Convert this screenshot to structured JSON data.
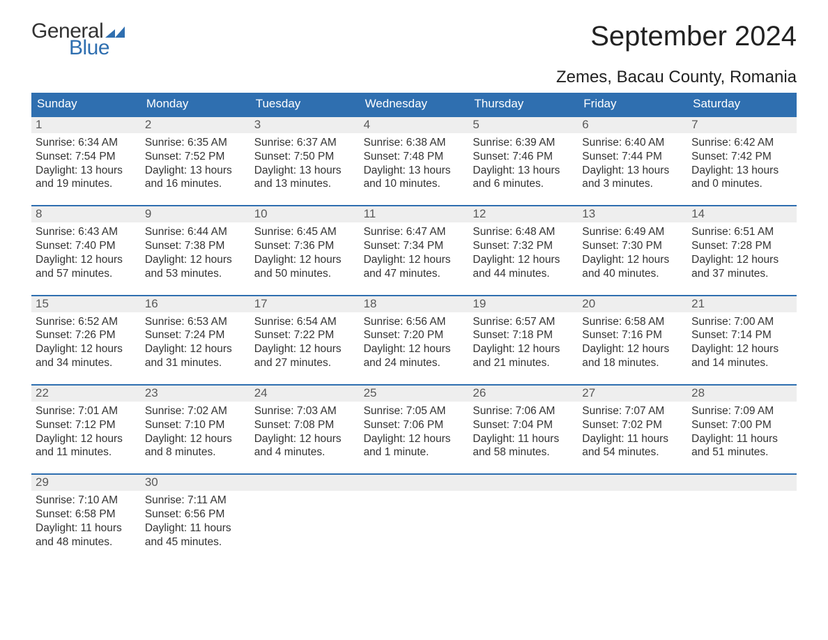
{
  "logo": {
    "text_general": "General",
    "text_blue": "Blue",
    "flag_color": "#2f6fb0",
    "general_color": "#333333",
    "blue_color": "#2f6fb0"
  },
  "title": "September 2024",
  "location": "Zemes, Bacau County, Romania",
  "colors": {
    "header_bg": "#2f6fb0",
    "header_text": "#ffffff",
    "day_strip_bg": "#eeeeee",
    "day_num_color": "#595959",
    "body_text": "#333333",
    "row_border": "#2f6fb0",
    "page_bg": "#ffffff"
  },
  "typography": {
    "title_fontsize": 40,
    "location_fontsize": 24,
    "dow_fontsize": 17,
    "daynum_fontsize": 17,
    "body_fontsize": 15.5
  },
  "days_of_week": [
    "Sunday",
    "Monday",
    "Tuesday",
    "Wednesday",
    "Thursday",
    "Friday",
    "Saturday"
  ],
  "weeks": [
    {
      "days": [
        {
          "num": "1",
          "sunrise": "Sunrise: 6:34 AM",
          "sunset": "Sunset: 7:54 PM",
          "daylight1": "Daylight: 13 hours",
          "daylight2": "and 19 minutes."
        },
        {
          "num": "2",
          "sunrise": "Sunrise: 6:35 AM",
          "sunset": "Sunset: 7:52 PM",
          "daylight1": "Daylight: 13 hours",
          "daylight2": "and 16 minutes."
        },
        {
          "num": "3",
          "sunrise": "Sunrise: 6:37 AM",
          "sunset": "Sunset: 7:50 PM",
          "daylight1": "Daylight: 13 hours",
          "daylight2": "and 13 minutes."
        },
        {
          "num": "4",
          "sunrise": "Sunrise: 6:38 AM",
          "sunset": "Sunset: 7:48 PM",
          "daylight1": "Daylight: 13 hours",
          "daylight2": "and 10 minutes."
        },
        {
          "num": "5",
          "sunrise": "Sunrise: 6:39 AM",
          "sunset": "Sunset: 7:46 PM",
          "daylight1": "Daylight: 13 hours",
          "daylight2": "and 6 minutes."
        },
        {
          "num": "6",
          "sunrise": "Sunrise: 6:40 AM",
          "sunset": "Sunset: 7:44 PM",
          "daylight1": "Daylight: 13 hours",
          "daylight2": "and 3 minutes."
        },
        {
          "num": "7",
          "sunrise": "Sunrise: 6:42 AM",
          "sunset": "Sunset: 7:42 PM",
          "daylight1": "Daylight: 13 hours",
          "daylight2": "and 0 minutes."
        }
      ]
    },
    {
      "days": [
        {
          "num": "8",
          "sunrise": "Sunrise: 6:43 AM",
          "sunset": "Sunset: 7:40 PM",
          "daylight1": "Daylight: 12 hours",
          "daylight2": "and 57 minutes."
        },
        {
          "num": "9",
          "sunrise": "Sunrise: 6:44 AM",
          "sunset": "Sunset: 7:38 PM",
          "daylight1": "Daylight: 12 hours",
          "daylight2": "and 53 minutes."
        },
        {
          "num": "10",
          "sunrise": "Sunrise: 6:45 AM",
          "sunset": "Sunset: 7:36 PM",
          "daylight1": "Daylight: 12 hours",
          "daylight2": "and 50 minutes."
        },
        {
          "num": "11",
          "sunrise": "Sunrise: 6:47 AM",
          "sunset": "Sunset: 7:34 PM",
          "daylight1": "Daylight: 12 hours",
          "daylight2": "and 47 minutes."
        },
        {
          "num": "12",
          "sunrise": "Sunrise: 6:48 AM",
          "sunset": "Sunset: 7:32 PM",
          "daylight1": "Daylight: 12 hours",
          "daylight2": "and 44 minutes."
        },
        {
          "num": "13",
          "sunrise": "Sunrise: 6:49 AM",
          "sunset": "Sunset: 7:30 PM",
          "daylight1": "Daylight: 12 hours",
          "daylight2": "and 40 minutes."
        },
        {
          "num": "14",
          "sunrise": "Sunrise: 6:51 AM",
          "sunset": "Sunset: 7:28 PM",
          "daylight1": "Daylight: 12 hours",
          "daylight2": "and 37 minutes."
        }
      ]
    },
    {
      "days": [
        {
          "num": "15",
          "sunrise": "Sunrise: 6:52 AM",
          "sunset": "Sunset: 7:26 PM",
          "daylight1": "Daylight: 12 hours",
          "daylight2": "and 34 minutes."
        },
        {
          "num": "16",
          "sunrise": "Sunrise: 6:53 AM",
          "sunset": "Sunset: 7:24 PM",
          "daylight1": "Daylight: 12 hours",
          "daylight2": "and 31 minutes."
        },
        {
          "num": "17",
          "sunrise": "Sunrise: 6:54 AM",
          "sunset": "Sunset: 7:22 PM",
          "daylight1": "Daylight: 12 hours",
          "daylight2": "and 27 minutes."
        },
        {
          "num": "18",
          "sunrise": "Sunrise: 6:56 AM",
          "sunset": "Sunset: 7:20 PM",
          "daylight1": "Daylight: 12 hours",
          "daylight2": "and 24 minutes."
        },
        {
          "num": "19",
          "sunrise": "Sunrise: 6:57 AM",
          "sunset": "Sunset: 7:18 PM",
          "daylight1": "Daylight: 12 hours",
          "daylight2": "and 21 minutes."
        },
        {
          "num": "20",
          "sunrise": "Sunrise: 6:58 AM",
          "sunset": "Sunset: 7:16 PM",
          "daylight1": "Daylight: 12 hours",
          "daylight2": "and 18 minutes."
        },
        {
          "num": "21",
          "sunrise": "Sunrise: 7:00 AM",
          "sunset": "Sunset: 7:14 PM",
          "daylight1": "Daylight: 12 hours",
          "daylight2": "and 14 minutes."
        }
      ]
    },
    {
      "days": [
        {
          "num": "22",
          "sunrise": "Sunrise: 7:01 AM",
          "sunset": "Sunset: 7:12 PM",
          "daylight1": "Daylight: 12 hours",
          "daylight2": "and 11 minutes."
        },
        {
          "num": "23",
          "sunrise": "Sunrise: 7:02 AM",
          "sunset": "Sunset: 7:10 PM",
          "daylight1": "Daylight: 12 hours",
          "daylight2": "and 8 minutes."
        },
        {
          "num": "24",
          "sunrise": "Sunrise: 7:03 AM",
          "sunset": "Sunset: 7:08 PM",
          "daylight1": "Daylight: 12 hours",
          "daylight2": "and 4 minutes."
        },
        {
          "num": "25",
          "sunrise": "Sunrise: 7:05 AM",
          "sunset": "Sunset: 7:06 PM",
          "daylight1": "Daylight: 12 hours",
          "daylight2": "and 1 minute."
        },
        {
          "num": "26",
          "sunrise": "Sunrise: 7:06 AM",
          "sunset": "Sunset: 7:04 PM",
          "daylight1": "Daylight: 11 hours",
          "daylight2": "and 58 minutes."
        },
        {
          "num": "27",
          "sunrise": "Sunrise: 7:07 AM",
          "sunset": "Sunset: 7:02 PM",
          "daylight1": "Daylight: 11 hours",
          "daylight2": "and 54 minutes."
        },
        {
          "num": "28",
          "sunrise": "Sunrise: 7:09 AM",
          "sunset": "Sunset: 7:00 PM",
          "daylight1": "Daylight: 11 hours",
          "daylight2": "and 51 minutes."
        }
      ]
    },
    {
      "days": [
        {
          "num": "29",
          "sunrise": "Sunrise: 7:10 AM",
          "sunset": "Sunset: 6:58 PM",
          "daylight1": "Daylight: 11 hours",
          "daylight2": "and 48 minutes."
        },
        {
          "num": "30",
          "sunrise": "Sunrise: 7:11 AM",
          "sunset": "Sunset: 6:56 PM",
          "daylight1": "Daylight: 11 hours",
          "daylight2": "and 45 minutes."
        },
        {
          "num": "",
          "empty": true
        },
        {
          "num": "",
          "empty": true
        },
        {
          "num": "",
          "empty": true
        },
        {
          "num": "",
          "empty": true
        },
        {
          "num": "",
          "empty": true
        }
      ]
    }
  ]
}
